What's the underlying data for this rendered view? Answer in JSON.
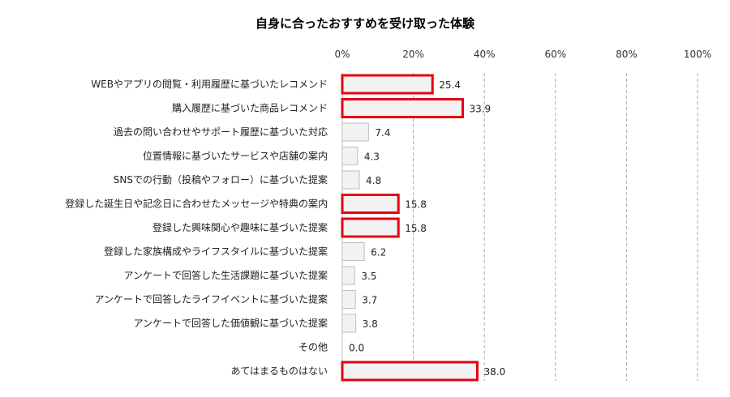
{
  "chart_data": {
    "type": "bar",
    "orientation": "horizontal",
    "title": "自身に合ったおすすめを受け取った体験",
    "xlabel": "",
    "ylabel": "",
    "xlim": [
      0,
      100
    ],
    "x_ticks": [
      "0%",
      "20%",
      "40%",
      "60%",
      "80%",
      "100%"
    ],
    "x_tick_values": [
      0,
      20,
      40,
      60,
      80,
      100
    ],
    "x_ticks_position": "top",
    "grid": "vertical dashed",
    "categories": [
      "WEBやアプリの閲覧・利用履歴に基づいたレコメンド",
      "購入履歴に基づいた商品レコメンド",
      "過去の問い合わせやサポート履歴に基づいた対応",
      "位置情報に基づいたサービスや店舗の案内",
      "SNSでの行動（投稿やフォロー）に基づいた提案",
      "登録した誕生日や記念日に合わせたメッセージや特典の案内",
      "登録した興味関心や趣味に基づいた提案",
      "登録した家族構成やライフスタイルに基づいた提案",
      "アンケートで回答した生活課題に基づいた提案",
      "アンケートで回答したライフイベントに基づいた提案",
      "アンケートで回答した価値観に基づいた提案",
      "その他",
      "あてはまるものはない"
    ],
    "values": [
      25.4,
      33.9,
      7.4,
      4.3,
      4.8,
      15.8,
      15.8,
      6.2,
      3.5,
      3.7,
      3.8,
      0.0,
      38.0
    ],
    "value_labels": [
      "25.4",
      "33.9",
      "7.4",
      "4.3",
      "4.8",
      "15.8",
      "15.8",
      "6.2",
      "3.5",
      "3.7",
      "3.8",
      "0.0",
      "38.0"
    ],
    "highlighted": [
      true,
      true,
      false,
      false,
      false,
      true,
      true,
      false,
      false,
      false,
      false,
      false,
      true
    ],
    "colors": {
      "bar_fill": "#f2f2f2",
      "bar_border": "#bfbfbf",
      "highlight_border": "#e60012",
      "grid": "#aaaaaa"
    }
  }
}
